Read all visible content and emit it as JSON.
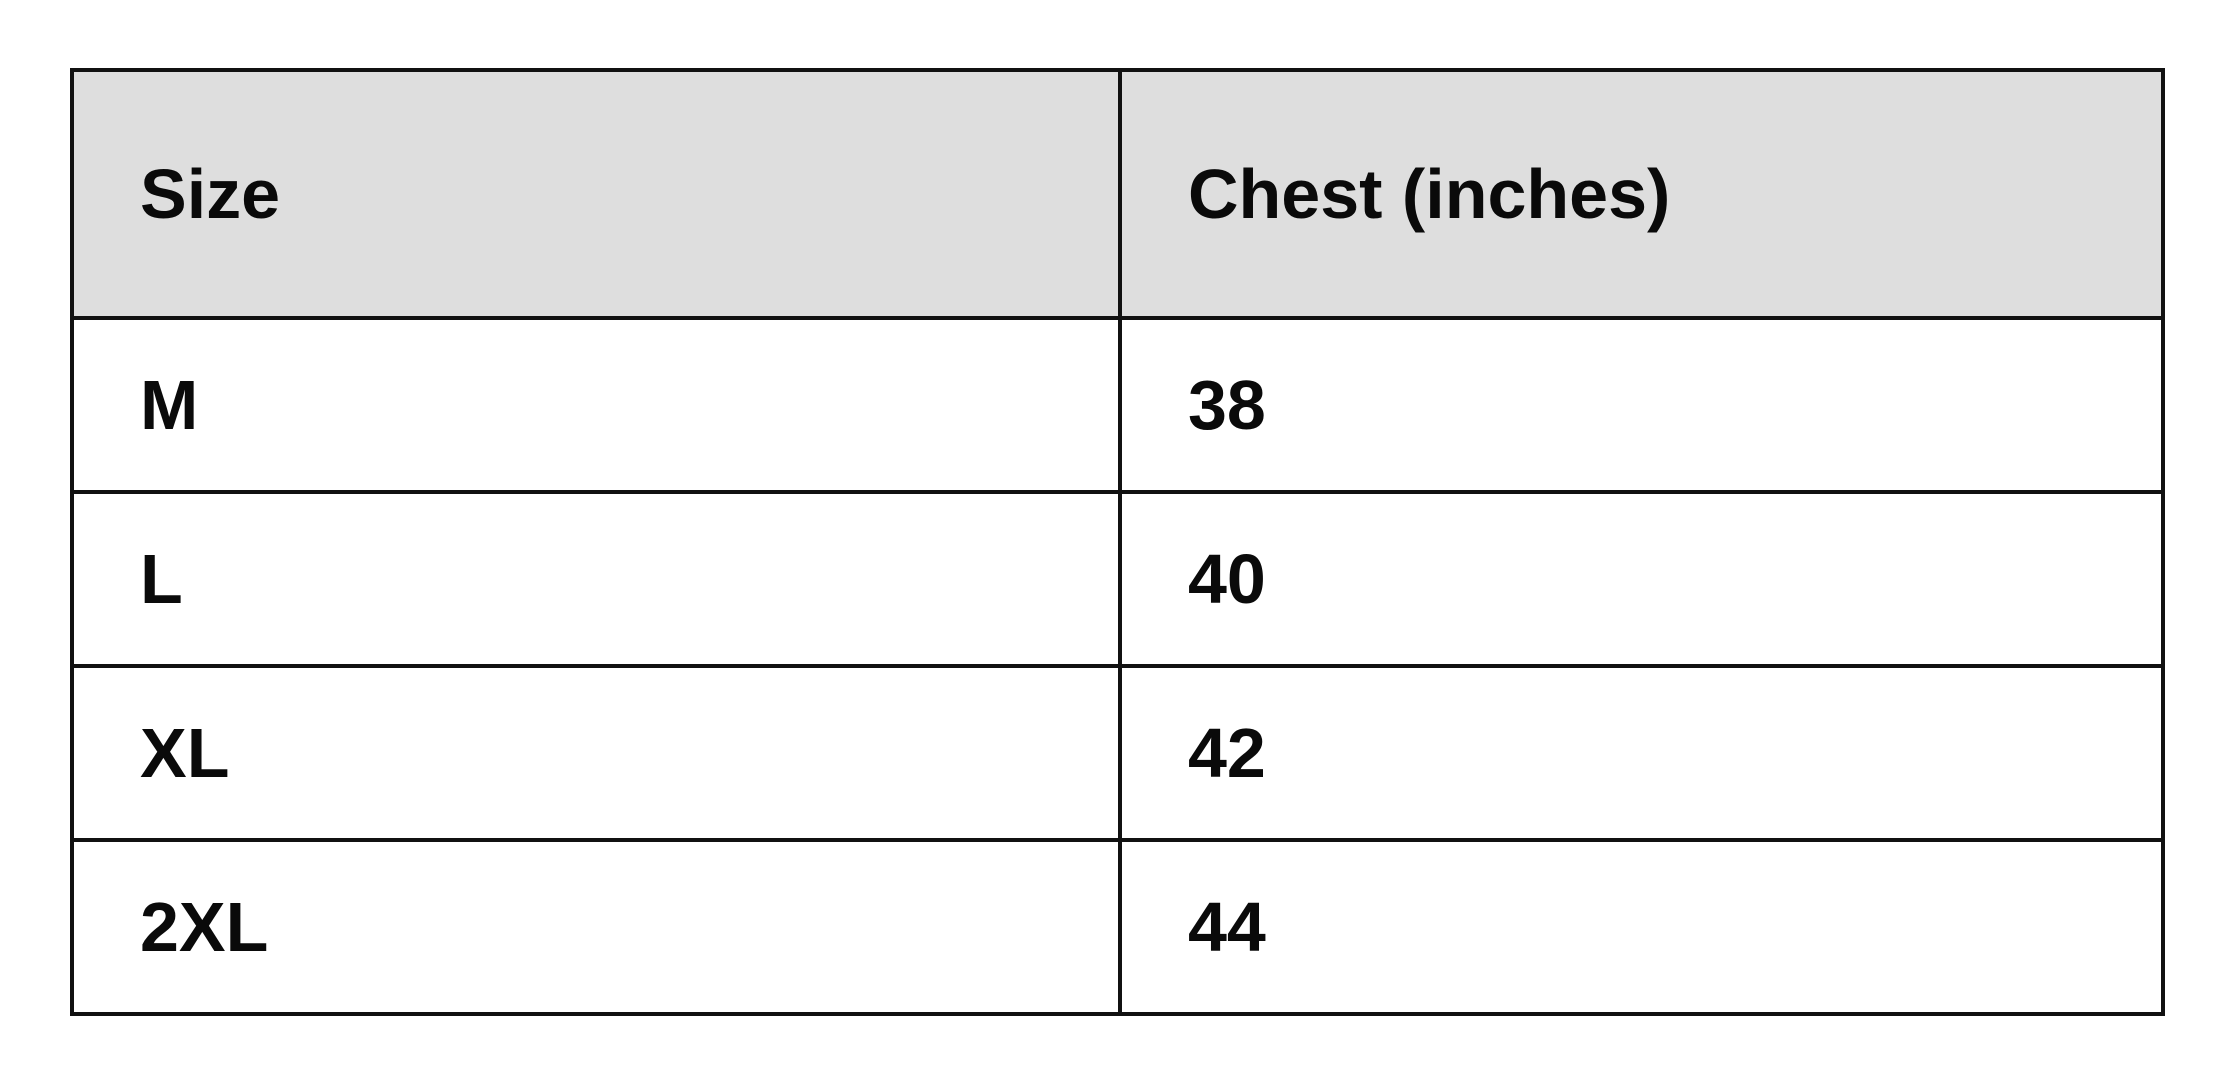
{
  "table": {
    "headers": [
      "Size",
      "Chest (inches)"
    ],
    "rows": [
      [
        "M",
        "38"
      ],
      [
        "L",
        "40"
      ],
      [
        "XL",
        "42"
      ],
      [
        "2XL",
        "44"
      ]
    ]
  },
  "colors": {
    "header_bg": "#dedede",
    "border": "#111111"
  }
}
